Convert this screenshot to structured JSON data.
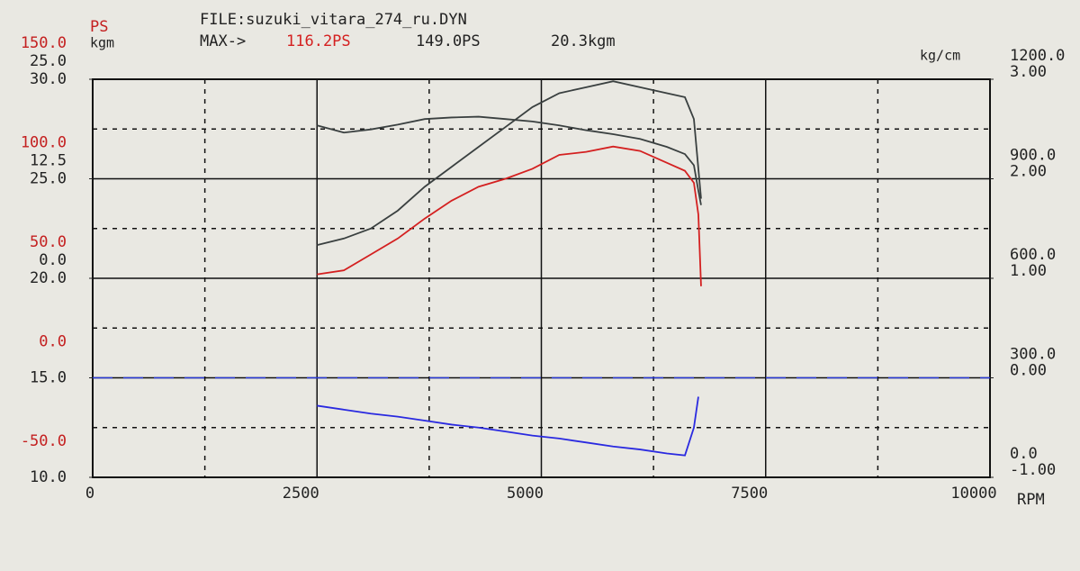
{
  "chart_data": {
    "type": "line",
    "header": {
      "ps_label": "PS",
      "kgm_label": "kgm",
      "file": "FILE:suzuki_vitara_274_ru.DYN",
      "max_label": "MAX->",
      "max_ps": "116.2PS",
      "max_ps2": "149.0PS",
      "max_kgm": "20.3kgm"
    },
    "xlabel": "RPM",
    "xlim": [
      0,
      10000
    ],
    "xticks": [
      0,
      2500,
      5000,
      7500,
      10000
    ],
    "axes": [
      {
        "name": "PS",
        "side": "left",
        "color": "#c42020",
        "ylim": [
          -50,
          150
        ],
        "yticks": [
          {
            "value": -50,
            "label": "-50.0"
          },
          {
            "value": 0,
            "label": "0.0"
          },
          {
            "value": 50,
            "label": "50.0"
          },
          {
            "value": 100,
            "label": "100.0"
          },
          {
            "value": 150,
            "label": "150.0"
          }
        ]
      },
      {
        "name": "kgm",
        "side": "left",
        "color": "#222222",
        "ylim": [
          -25,
          25
        ],
        "yticks": [
          {
            "value": 0,
            "label": "0.0"
          },
          {
            "value": 12.5,
            "label": "12.5"
          },
          {
            "value": 25,
            "label": "25.0"
          }
        ]
      },
      {
        "side": "left",
        "color": "#222222",
        "ylim": [
          10,
          30
        ],
        "yticks": [
          {
            "value": 10,
            "label": "10.0"
          },
          {
            "value": 15,
            "label": "15.0"
          },
          {
            "value": 20,
            "label": "20.0"
          },
          {
            "value": 25,
            "label": "25.0"
          },
          {
            "value": 30,
            "label": "30.0"
          }
        ]
      },
      {
        "side": "right",
        "color": "#222222",
        "ylim": [
          0,
          1200
        ],
        "yticks": [
          {
            "value": 0,
            "label": "0.0"
          },
          {
            "value": 300,
            "label": "300.0"
          },
          {
            "value": 600,
            "label": "600.0"
          },
          {
            "value": 900,
            "label": "900.0"
          },
          {
            "value": 1200,
            "label": "1200.0"
          }
        ]
      },
      {
        "name": "kg/cm",
        "side": "right",
        "color": "#222222",
        "ylim": [
          -1,
          3
        ],
        "yticks": [
          {
            "value": -1,
            "label": "-1.00"
          },
          {
            "value": 0,
            "label": "0.00"
          },
          {
            "value": 1,
            "label": "1.00"
          },
          {
            "value": 2,
            "label": "2.00"
          },
          {
            "value": 3,
            "label": "3.00"
          }
        ]
      }
    ],
    "reference_lines": [
      {
        "axis": "kg/cm",
        "value": 0,
        "color": "#2a3ad8"
      }
    ],
    "x": [
      2500,
      2800,
      3100,
      3400,
      3700,
      4000,
      4300,
      4600,
      4900,
      5200,
      5500,
      5800,
      6100,
      6400,
      6600,
      6700,
      6750,
      6780
    ],
    "series": [
      {
        "axis": "PS",
        "color": "#3a4040",
        "values": [
          66.7,
          70,
          75,
          84,
          96,
          106,
          116,
          126,
          136,
          143,
          146,
          149,
          146,
          143,
          141,
          130,
          105,
          90
        ]
      },
      {
        "axis": "kgm",
        "color": "#3a4040",
        "values": [
          19.2,
          18.3,
          18.7,
          19.3,
          20.0,
          20.2,
          20.3,
          20.0,
          19.7,
          19.2,
          18.6,
          18.1,
          17.5,
          16.5,
          15.6,
          14.2,
          11,
          9.2
        ]
      },
      {
        "axis": "PS",
        "color": "#d42020",
        "values": [
          52,
          54,
          62,
          70,
          80,
          89,
          96,
          100,
          105,
          112,
          113.5,
          116.2,
          114,
          108,
          104,
          98,
          82,
          46
        ]
      },
      {
        "axis": "kg/cm",
        "color": "#2a2ae0",
        "values": [
          -0.28,
          -0.32,
          -0.36,
          -0.39,
          -0.43,
          -0.47,
          -0.5,
          -0.54,
          -0.58,
          -0.61,
          -0.65,
          -0.69,
          -0.72,
          -0.76,
          -0.78,
          -0.5,
          -0.19,
          null
        ]
      }
    ],
    "grid": true
  }
}
